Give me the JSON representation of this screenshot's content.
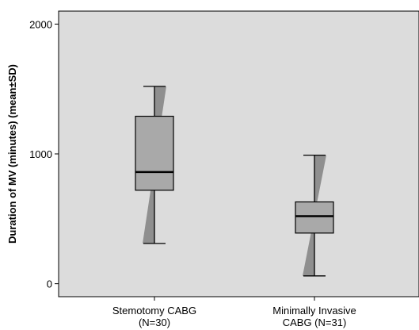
{
  "chart_data": {
    "type": "boxplot",
    "ylabel": "Duration of MV (minutes) (mean±SD)",
    "ylim": [
      -100,
      2100
    ],
    "yticks": [
      0,
      1000,
      2000
    ],
    "categories": [
      {
        "line1": "Stemotomy CABG",
        "line2": "(N=30)"
      },
      {
        "line1": "Minimally Invasive",
        "line2": "CABG (N=31)"
      }
    ],
    "boxes": [
      {
        "whisker_low": 310,
        "q1": 720,
        "median": 860,
        "q3": 1290,
        "whisker_high": 1520,
        "sd_low": 310,
        "sd_high": 1520
      },
      {
        "whisker_low": 60,
        "q1": 390,
        "median": 520,
        "q3": 630,
        "whisker_high": 990,
        "sd_low": 60,
        "sd_high": 990
      }
    ],
    "colors": {
      "plot_background": "#dcdcdc",
      "box_fill": "#a9a9a9",
      "sd_wedge": "#8f8f8f",
      "median": "#000000"
    }
  }
}
